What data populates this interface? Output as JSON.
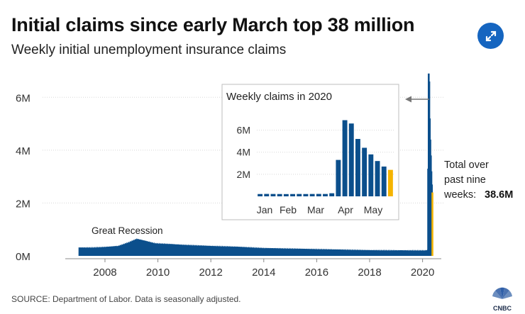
{
  "header": {
    "title": "Initial claims since early March top 38 million",
    "subtitle": "Weekly initial unemployment insurance claims"
  },
  "footer": {
    "source": "SOURCE: Department of Labor. Data is seasonally adjusted.",
    "logo_text": "CNBC"
  },
  "icons": {
    "expand": "expand-icon",
    "logo": "cnbc-peacock-logo"
  },
  "colors": {
    "bar": "#0b4f8c",
    "highlight": "#f5b400",
    "accent": "#1565c0"
  },
  "chart_data": [
    {
      "type": "area",
      "x_ticks": [
        "2008",
        "2010",
        "2012",
        "2014",
        "2016",
        "2018",
        "2020"
      ],
      "y_ticks": [
        "0M",
        "2M",
        "4M",
        "6M"
      ],
      "ylim": [
        0,
        7000000
      ],
      "xlim": [
        2006.5,
        2020.6
      ],
      "series": {
        "x": [
          2007.0,
          2007.5,
          2008.0,
          2008.5,
          2008.9,
          2009.2,
          2009.5,
          2009.9,
          2010.5,
          2011.0,
          2012.0,
          2013.0,
          2014.0,
          2015.0,
          2016.0,
          2017.0,
          2018.0,
          2019.0,
          2020.1,
          2020.2
        ],
        "y": [
          320000,
          320000,
          340000,
          380000,
          520000,
          650000,
          580000,
          480000,
          450000,
          420000,
          380000,
          350000,
          300000,
          280000,
          260000,
          240000,
          220000,
          215000,
          210000,
          230000
        ]
      },
      "spike_weeks": [
        {
          "x": 2020.21,
          "y": 3300000
        },
        {
          "x": 2020.23,
          "y": 6900000
        },
        {
          "x": 2020.25,
          "y": 6600000
        },
        {
          "x": 2020.27,
          "y": 5200000
        },
        {
          "x": 2020.29,
          "y": 4400000
        },
        {
          "x": 2020.31,
          "y": 3800000
        },
        {
          "x": 2020.33,
          "y": 3200000
        },
        {
          "x": 2020.35,
          "y": 2700000
        },
        {
          "x": 2020.37,
          "y": 2400000
        }
      ],
      "annotations": {
        "recession": "Great Recession",
        "total_line1": "Total over",
        "total_line2": "past nine",
        "total_line3": "weeks:",
        "total_value": "38.6M"
      }
    },
    {
      "type": "bar",
      "title": "Weekly claims in 2020",
      "x_ticks": [
        "Jan",
        "Feb",
        "Mar",
        "Apr",
        "May"
      ],
      "y_ticks": [
        "2M",
        "4M",
        "6M"
      ],
      "ylim": [
        0,
        7000000
      ],
      "values": [
        210000,
        220000,
        215000,
        210000,
        205000,
        210000,
        215000,
        210000,
        215000,
        220000,
        215000,
        280000,
        3300000,
        6900000,
        6600000,
        5200000,
        4400000,
        3800000,
        3200000,
        2700000,
        2400000
      ],
      "highlight_index": 20
    }
  ]
}
